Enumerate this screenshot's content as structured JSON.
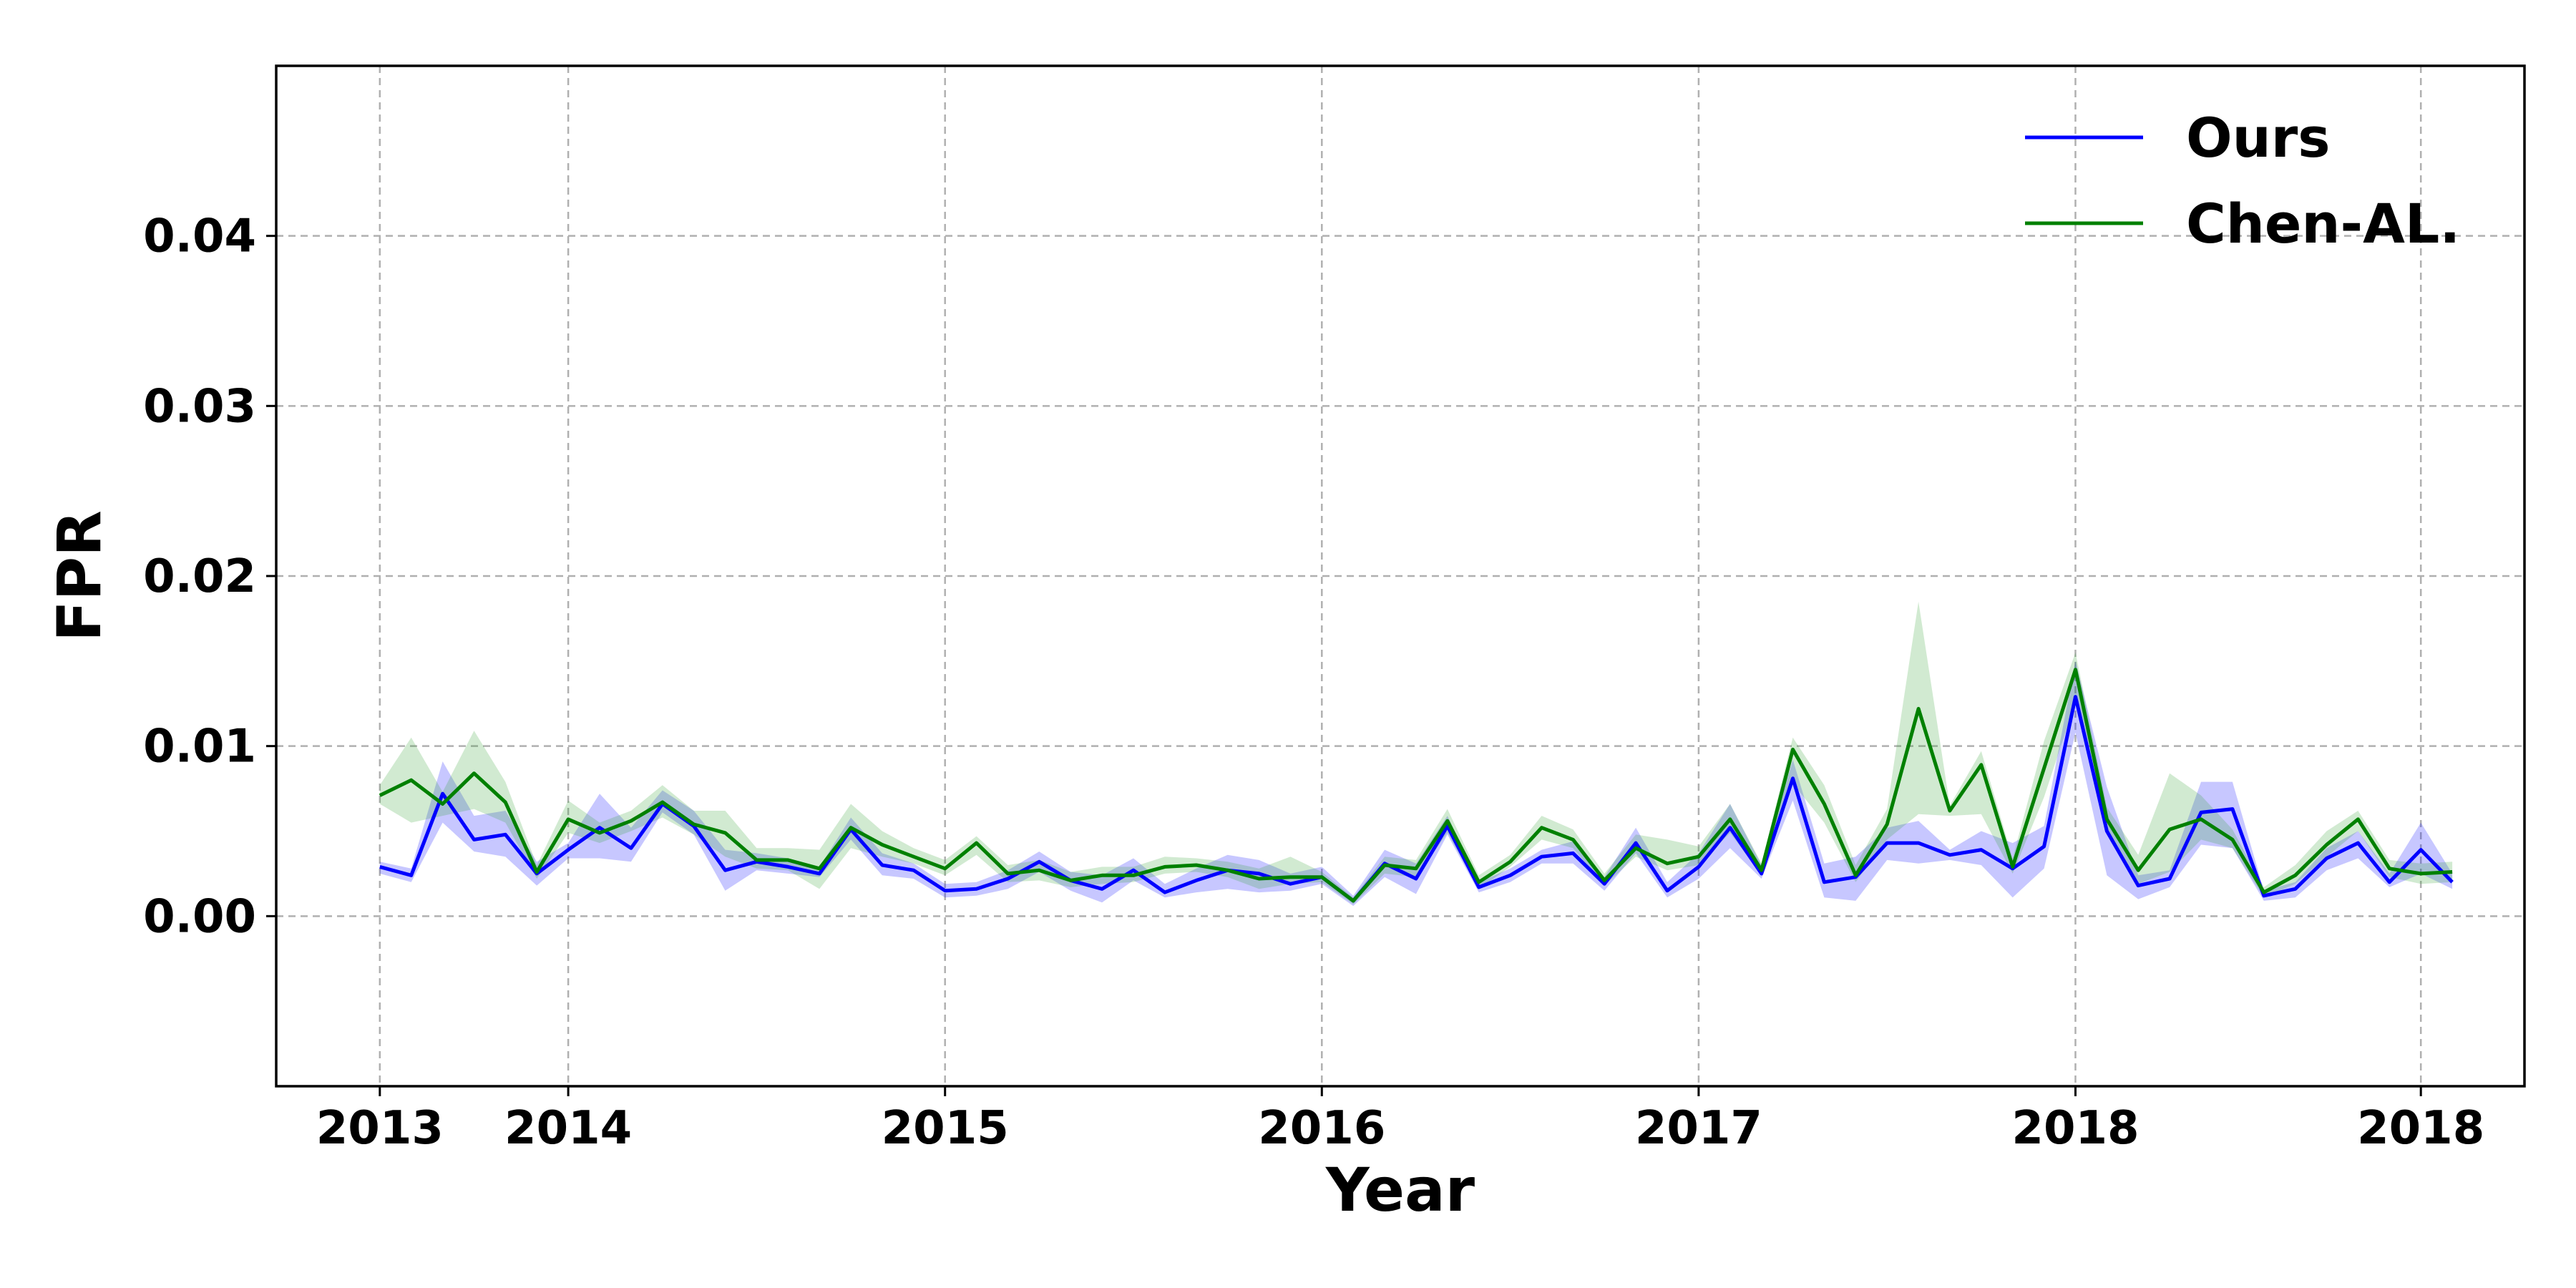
{
  "chart_data": {
    "type": "line",
    "xlabel": "Year",
    "ylabel": "FPR",
    "ylim": [
      -0.01,
      0.05
    ],
    "y_ticks": [
      0.0,
      0.01,
      0.02,
      0.03,
      0.04
    ],
    "y_tick_labels": [
      "0.00",
      "0.01",
      "0.02",
      "0.03",
      "0.04"
    ],
    "x_ticks": [
      0,
      6,
      18,
      30,
      42,
      54,
      65
    ],
    "x_tick_labels": [
      "2013",
      "2014",
      "2015",
      "2016",
      "2017",
      "2018",
      "2018"
    ],
    "xlim": [
      -3.3,
      68.3
    ],
    "grid": true,
    "legend_position": "top-right",
    "series": [
      {
        "name": "Ours",
        "color": "#0000ff",
        "band_color": "#0000ff",
        "values": [
          0.0029,
          0.0024,
          0.0072,
          0.0045,
          0.0048,
          0.0025,
          0.0039,
          0.0052,
          0.004,
          0.0066,
          0.0053,
          0.0027,
          0.0032,
          0.0029,
          0.0025,
          0.0051,
          0.003,
          0.0027,
          0.0015,
          0.0016,
          0.0022,
          0.0032,
          0.0021,
          0.0016,
          0.0027,
          0.0014,
          0.0021,
          0.0027,
          0.0025,
          0.0019,
          0.0023,
          0.0009,
          0.0031,
          0.0022,
          0.0053,
          0.0017,
          0.0024,
          0.0035,
          0.0037,
          0.0019,
          0.0043,
          0.0015,
          0.0029,
          0.0052,
          0.0025,
          0.0081,
          0.002,
          0.0023,
          0.0043,
          0.0043,
          0.0036,
          0.0039,
          0.0028,
          0.0041,
          0.0129,
          0.005,
          0.0018,
          0.0022,
          0.0061,
          0.0063,
          0.0012,
          0.0016,
          0.0034,
          0.0043,
          0.002,
          0.0039,
          0.002
        ],
        "lower": [
          0.0025,
          0.002,
          0.0055,
          0.0038,
          0.0035,
          0.0018,
          0.0034,
          0.0034,
          0.0032,
          0.0061,
          0.0048,
          0.0015,
          0.0027,
          0.0025,
          0.0023,
          0.0045,
          0.0024,
          0.0022,
          0.0011,
          0.0012,
          0.0016,
          0.0026,
          0.0015,
          0.0008,
          0.0021,
          0.0011,
          0.0014,
          0.0016,
          0.0014,
          0.0015,
          0.0019,
          0.0006,
          0.0023,
          0.0013,
          0.0048,
          0.0014,
          0.002,
          0.0031,
          0.0031,
          0.0015,
          0.0037,
          0.0011,
          0.0022,
          0.004,
          0.0022,
          0.0068,
          0.0011,
          0.0009,
          0.0033,
          0.0031,
          0.0033,
          0.003,
          0.0011,
          0.0028,
          0.0108,
          0.0024,
          0.001,
          0.0017,
          0.0042,
          0.004,
          0.0009,
          0.0011,
          0.0027,
          0.0034,
          0.0017,
          0.0025,
          0.0016
        ],
        "upper": [
          0.0032,
          0.0028,
          0.0091,
          0.0059,
          0.0062,
          0.0032,
          0.0043,
          0.0072,
          0.0052,
          0.0074,
          0.0062,
          0.0039,
          0.0037,
          0.0034,
          0.0029,
          0.0058,
          0.0037,
          0.0031,
          0.0019,
          0.002,
          0.0027,
          0.0038,
          0.0026,
          0.0024,
          0.0034,
          0.0019,
          0.0028,
          0.0036,
          0.0033,
          0.0025,
          0.0029,
          0.0012,
          0.0039,
          0.0031,
          0.0059,
          0.002,
          0.0028,
          0.0039,
          0.0044,
          0.0023,
          0.0052,
          0.002,
          0.0037,
          0.0066,
          0.003,
          0.0092,
          0.0031,
          0.0035,
          0.0052,
          0.0056,
          0.0039,
          0.005,
          0.0043,
          0.0053,
          0.015,
          0.0076,
          0.0024,
          0.0027,
          0.0079,
          0.0079,
          0.0015,
          0.002,
          0.004,
          0.005,
          0.0025,
          0.0055,
          0.0025
        ]
      },
      {
        "name": "Chen-AL.",
        "color": "#008000",
        "band_color": "#2ca02c",
        "values": [
          0.0071,
          0.008,
          0.0066,
          0.0084,
          0.0067,
          0.0026,
          0.0057,
          0.0049,
          0.0056,
          0.0067,
          0.0054,
          0.0049,
          0.0033,
          0.0033,
          0.0028,
          0.0052,
          0.0042,
          0.0035,
          0.0028,
          0.0043,
          0.0025,
          0.0027,
          0.0021,
          0.0024,
          0.0024,
          0.0029,
          0.003,
          0.0027,
          0.0022,
          0.0023,
          0.0023,
          0.0009,
          0.003,
          0.0028,
          0.0056,
          0.002,
          0.0032,
          0.0052,
          0.0045,
          0.0021,
          0.004,
          0.0031,
          0.0035,
          0.0057,
          0.0027,
          0.0098,
          0.0066,
          0.0024,
          0.0054,
          0.0122,
          0.0062,
          0.0089,
          0.0029,
          0.0087,
          0.0145,
          0.0057,
          0.0027,
          0.0051,
          0.0057,
          0.0045,
          0.0014,
          0.0024,
          0.0042,
          0.0057,
          0.0028,
          0.0025,
          0.0026
        ],
        "lower": [
          0.0066,
          0.0055,
          0.0059,
          0.0063,
          0.0055,
          0.0022,
          0.0049,
          0.0043,
          0.005,
          0.0058,
          0.0048,
          0.0035,
          0.0028,
          0.0027,
          0.0016,
          0.004,
          0.0035,
          0.0031,
          0.0024,
          0.0036,
          0.002,
          0.0021,
          0.0017,
          0.0019,
          0.002,
          0.0025,
          0.0026,
          0.0023,
          0.0016,
          0.0019,
          0.002,
          0.0007,
          0.0025,
          0.0023,
          0.0049,
          0.0016,
          0.0029,
          0.0045,
          0.004,
          0.0018,
          0.0035,
          0.0027,
          0.003,
          0.0049,
          0.0024,
          0.0078,
          0.0055,
          0.002,
          0.0045,
          0.006,
          0.0059,
          0.006,
          0.0025,
          0.007,
          0.0126,
          0.005,
          0.0019,
          0.0026,
          0.0045,
          0.004,
          0.0011,
          0.0019,
          0.0035,
          0.005,
          0.0023,
          0.0019,
          0.002
        ],
        "upper": [
          0.0077,
          0.0105,
          0.0073,
          0.0109,
          0.0079,
          0.003,
          0.0068,
          0.0055,
          0.0062,
          0.0077,
          0.0062,
          0.0062,
          0.004,
          0.004,
          0.0039,
          0.0066,
          0.005,
          0.004,
          0.0033,
          0.0047,
          0.003,
          0.0033,
          0.0026,
          0.0029,
          0.0029,
          0.0035,
          0.0034,
          0.0032,
          0.0028,
          0.0035,
          0.0026,
          0.0011,
          0.0035,
          0.0033,
          0.0063,
          0.0024,
          0.0036,
          0.0059,
          0.0051,
          0.0025,
          0.0048,
          0.0045,
          0.0041,
          0.0066,
          0.0031,
          0.0105,
          0.0077,
          0.003,
          0.0063,
          0.0185,
          0.0065,
          0.0097,
          0.0034,
          0.0103,
          0.0155,
          0.0064,
          0.0036,
          0.0084,
          0.0071,
          0.0051,
          0.0017,
          0.003,
          0.005,
          0.0062,
          0.0033,
          0.0031,
          0.0032
        ]
      }
    ]
  }
}
